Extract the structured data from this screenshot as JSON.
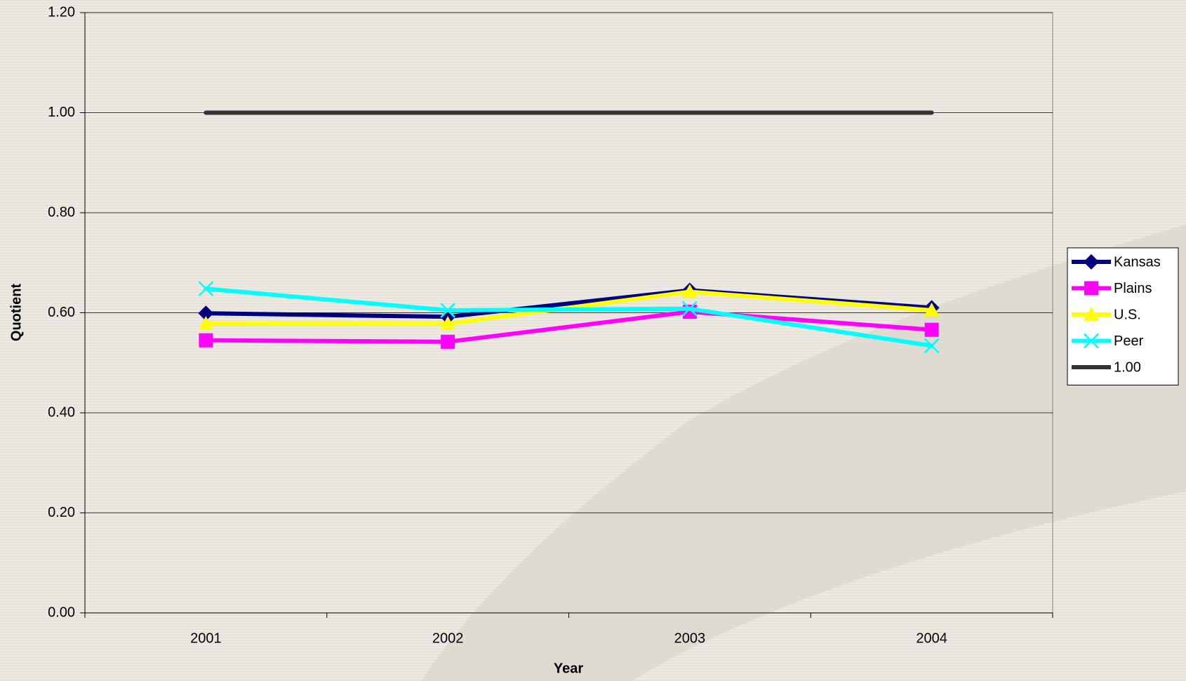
{
  "chart_data": {
    "type": "line",
    "x_label": "Year",
    "y_label": "Quotient",
    "categories": [
      "2001",
      "2002",
      "2003",
      "2004"
    ],
    "series": [
      {
        "name": "Kansas",
        "color": "#000080",
        "marker": "diamond",
        "values": [
          0.599,
          0.592,
          0.645,
          0.61
        ]
      },
      {
        "name": "Plains",
        "color": "#ff00ff",
        "marker": "square",
        "values": [
          0.545,
          0.542,
          0.602,
          0.566
        ]
      },
      {
        "name": "U.S.",
        "color": "#ffff00",
        "marker": "triangle",
        "values": [
          0.578,
          0.578,
          0.642,
          0.605
        ]
      },
      {
        "name": "Peer",
        "color": "#00ffff",
        "marker": "x",
        "values": [
          0.648,
          0.605,
          0.608,
          0.534
        ]
      },
      {
        "name": "1.00",
        "color": "#333333",
        "marker": "none",
        "values": [
          1,
          1,
          1,
          1
        ]
      }
    ],
    "ylim": [
      0,
      1.2
    ],
    "yticks": [
      {
        "value": 0,
        "label": "0.00"
      },
      {
        "value": 0.2,
        "label": "0.20"
      },
      {
        "value": 0.4,
        "label": "0.40"
      },
      {
        "value": 0.6,
        "label": "0.60"
      },
      {
        "value": 0.8,
        "label": "0.80"
      },
      {
        "value": 1,
        "label": "1.00"
      },
      {
        "value": 1.2,
        "label": "1.20"
      }
    ],
    "grid": true,
    "legend": "right"
  }
}
